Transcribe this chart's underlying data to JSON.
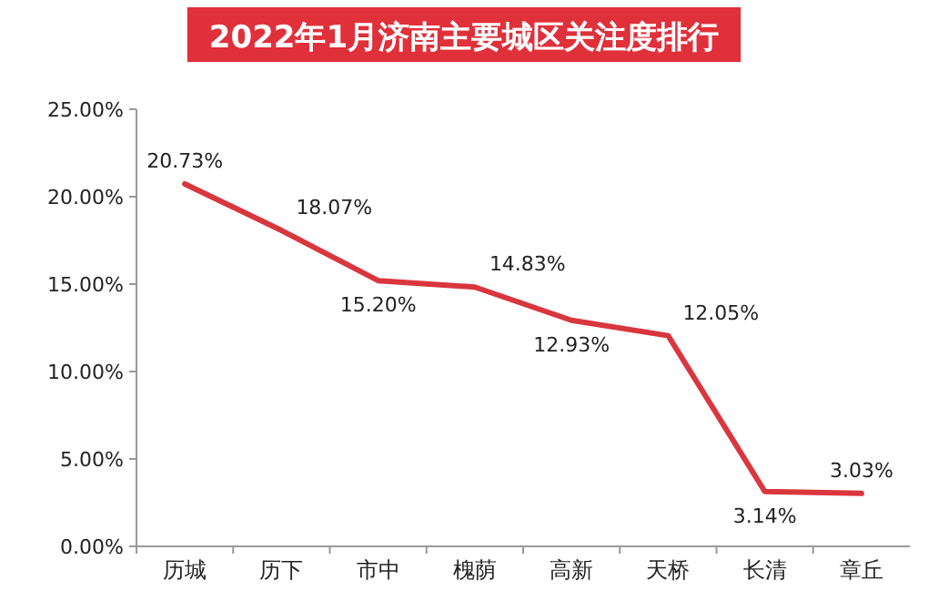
{
  "chart_data": {
    "type": "line",
    "title": "2022年1月济南主要城区关注度排行",
    "categories": [
      "历城",
      "历下",
      "市中",
      "槐荫",
      "高新",
      "天桥",
      "长清",
      "章丘"
    ],
    "values": [
      20.73,
      18.07,
      15.2,
      14.83,
      12.93,
      12.05,
      3.14,
      3.03
    ],
    "value_labels": [
      "20.73%",
      "18.07%",
      "15.20%",
      "14.83%",
      "12.93%",
      "12.05%",
      "3.14%",
      "3.03%"
    ],
    "color": "#d9363e",
    "marker": "none",
    "grid": false,
    "ylim": [
      0,
      25
    ],
    "yticks": [
      {
        "value": 0,
        "label": "0.00%"
      },
      {
        "value": 5,
        "label": "5.00%"
      },
      {
        "value": 10,
        "label": "10.00%"
      },
      {
        "value": 15,
        "label": "15.00%"
      },
      {
        "value": 20,
        "label": "20.00%"
      },
      {
        "value": 25,
        "label": "25.00%"
      }
    ]
  }
}
